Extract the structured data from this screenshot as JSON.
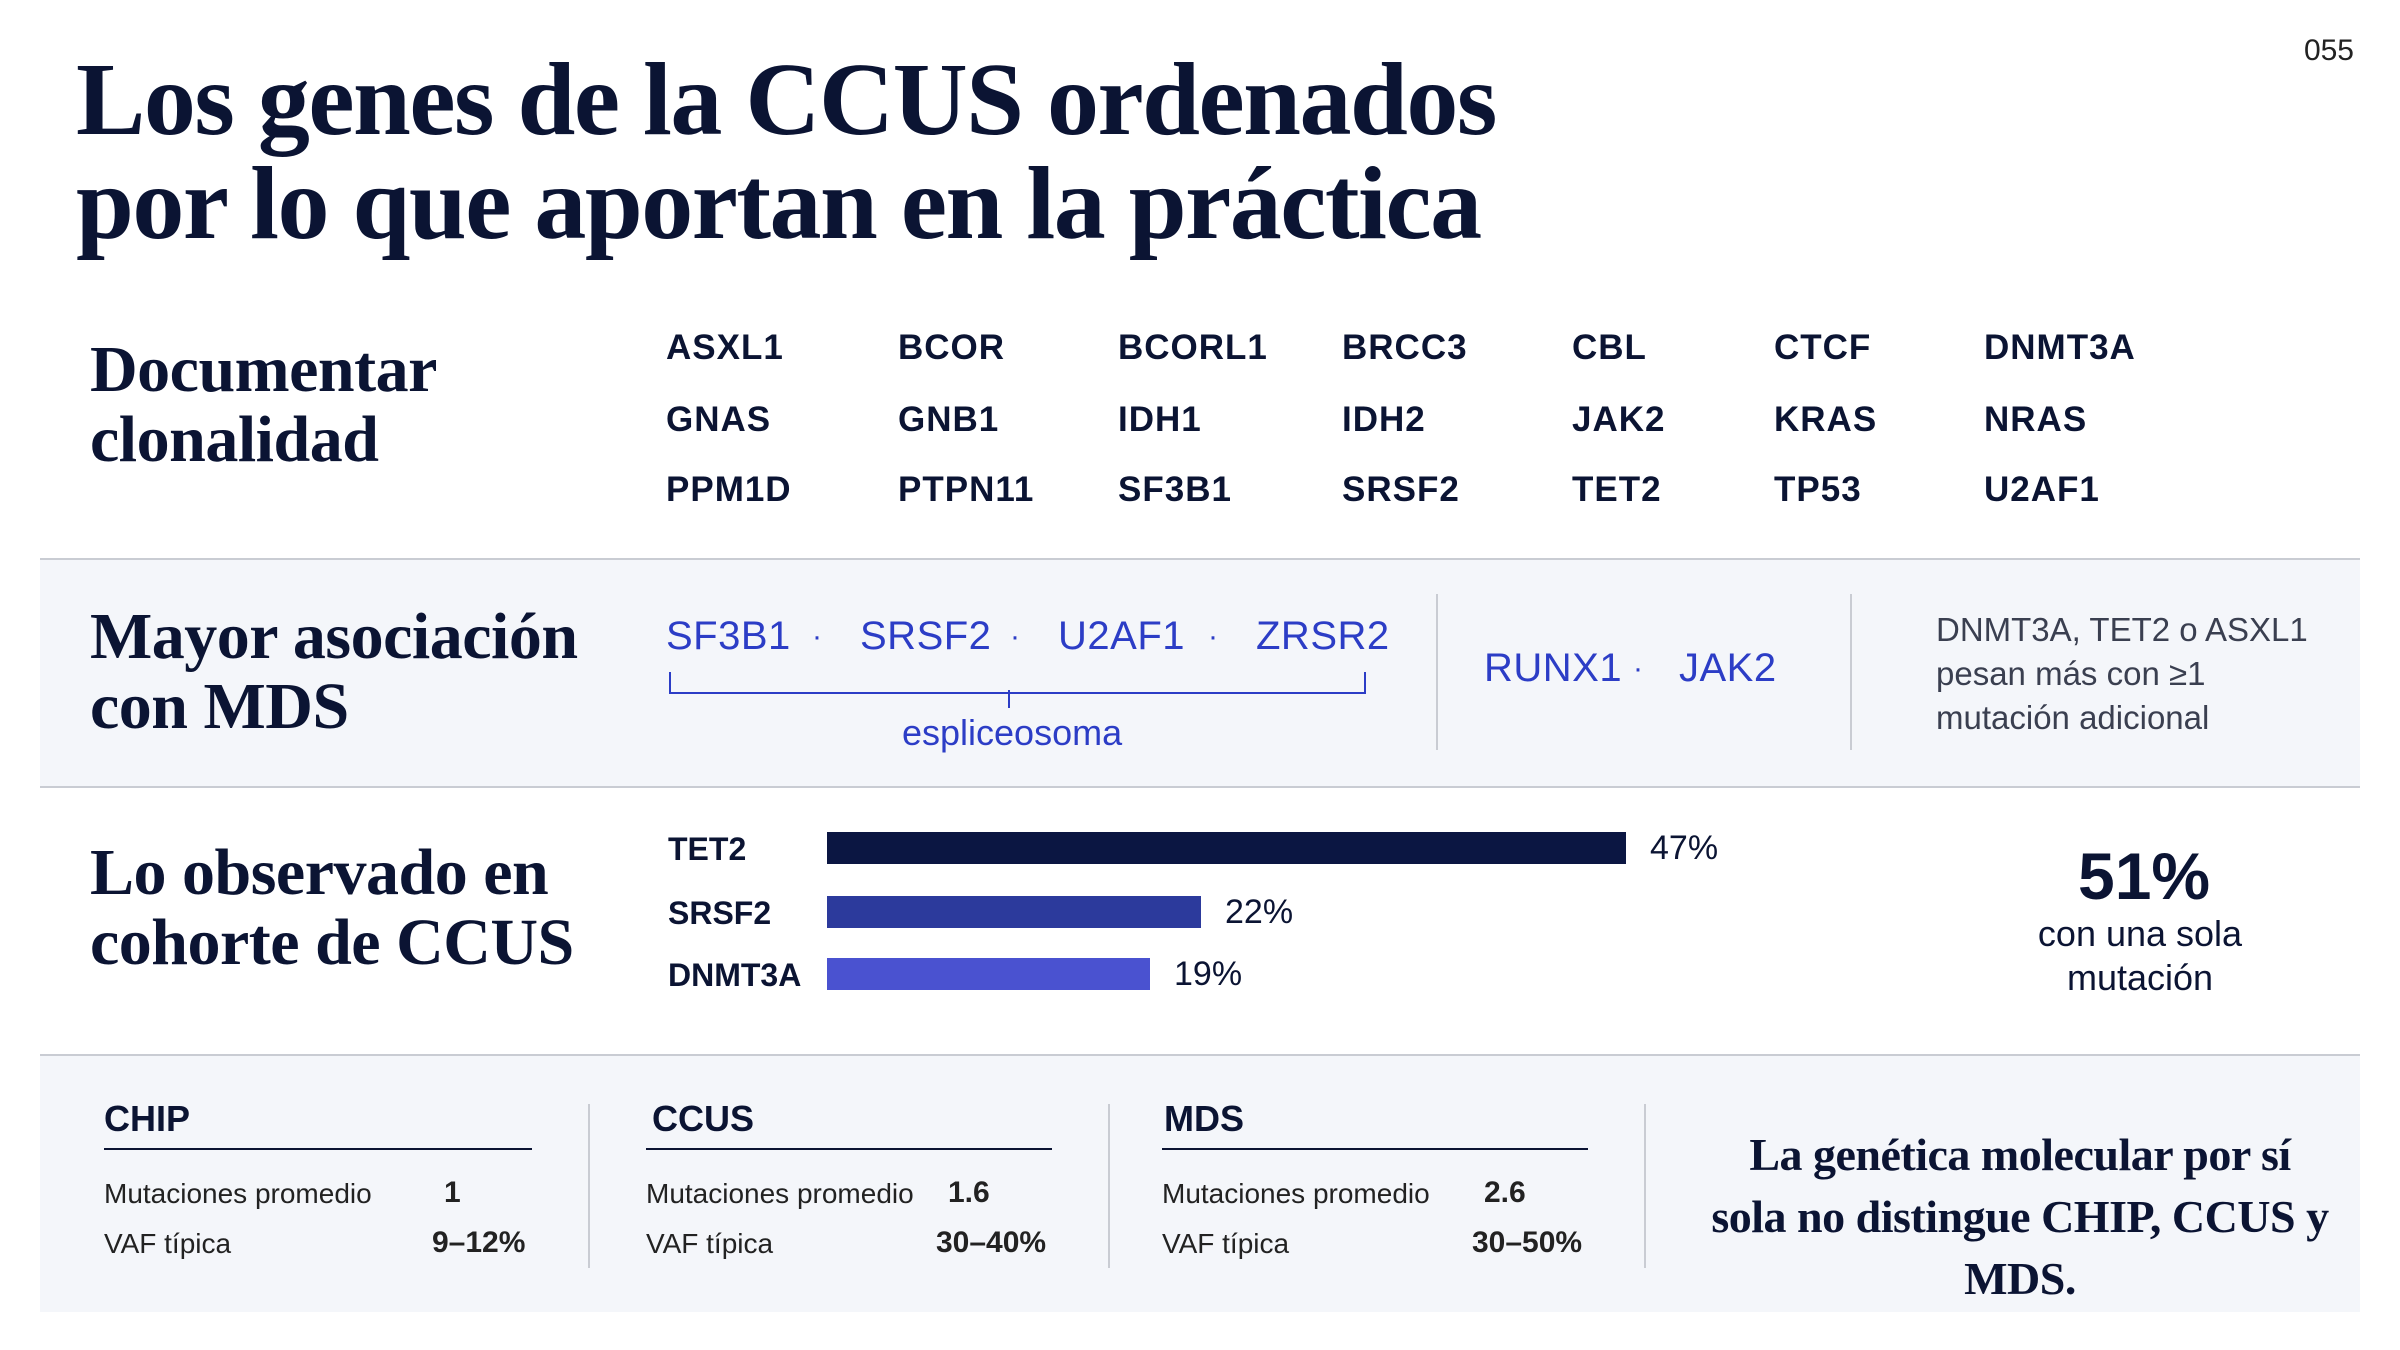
{
  "slide_number": "055",
  "title_lines": [
    "Los genes de la CCUS ordenados",
    "por lo que aportan en la práctica"
  ],
  "clonality": {
    "heading_lines": [
      "Documentar",
      "clonalidad"
    ],
    "genes": [
      "ASXL1",
      "BCOR",
      "BCORL1",
      "BRCC3",
      "CBL",
      "CTCF",
      "DNMT3A",
      "GNAS",
      "GNB1",
      "IDH1",
      "IDH2",
      "JAK2",
      "KRAS",
      "NRAS",
      "PPM1D",
      "PTPN11",
      "SF3B1",
      "SRSF2",
      "TET2",
      "TP53",
      "U2AF1"
    ]
  },
  "mds": {
    "heading_lines": [
      "Mayor asociación",
      "con MDS"
    ],
    "spliceosome_genes": [
      "SF3B1",
      "SRSF2",
      "U2AF1",
      "ZRSR2"
    ],
    "separator": "·",
    "bracket_label": "espliceosoma",
    "other_genes": [
      "RUNX1",
      "JAK2"
    ],
    "note_lines": [
      "DNMT3A, TET2 o ASXL1",
      "pesan más con ≥1",
      "mutación adicional"
    ]
  },
  "cohort": {
    "heading_lines": [
      "Lo observado en",
      "cohorte de CCUS"
    ],
    "big_stat": "51%",
    "big_stat_caption_lines": [
      "con una sola",
      "mutación"
    ]
  },
  "chart_data": {
    "type": "bar",
    "orientation": "horizontal",
    "categories": [
      "TET2",
      "SRSF2",
      "DNMT3A"
    ],
    "values": [
      47,
      22,
      19
    ],
    "value_labels": [
      "47%",
      "22%",
      "19%"
    ],
    "unit": "%",
    "colors": [
      "#0b1642",
      "#2c3a9c",
      "#4a52d0"
    ]
  },
  "comparison": {
    "categories": [
      {
        "name": "CHIP",
        "rows": [
          {
            "label": "Mutaciones promedio",
            "value": "1"
          },
          {
            "label": "VAF típica",
            "value": "9–12%"
          }
        ]
      },
      {
        "name": "CCUS",
        "rows": [
          {
            "label": "Mutaciones promedio",
            "value": "1.6"
          },
          {
            "label": "VAF típica",
            "value": "30–40%"
          }
        ]
      },
      {
        "name": "MDS",
        "rows": [
          {
            "label": "Mutaciones promedio",
            "value": "2.6"
          },
          {
            "label": "VAF típica",
            "value": "30–50%"
          }
        ]
      }
    ],
    "conclusion_lines": [
      "La genética molecular por sí",
      "sola no distingue CHIP, CCUS y MDS."
    ]
  },
  "colors": {
    "navy": "#0b1433",
    "accent_blue": "#2c3dc6",
    "band_bg": "#f4f6fa",
    "rule": "#c9ccd3"
  }
}
